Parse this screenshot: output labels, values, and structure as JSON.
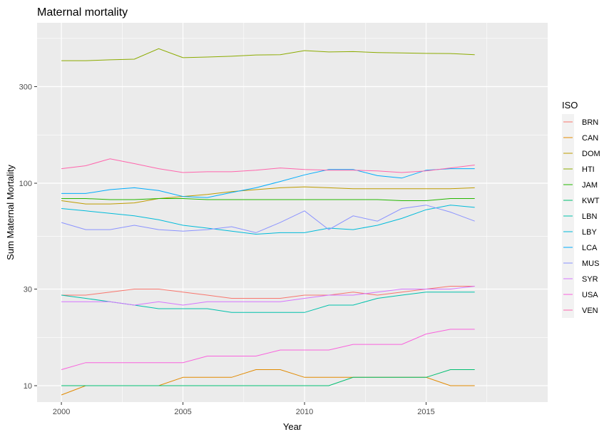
{
  "chart_data": {
    "type": "line",
    "title": "Maternal mortality",
    "xlabel": "Year",
    "ylabel": "Sum Maternal Mortality",
    "x_scale": "linear",
    "y_scale": "log10",
    "xlim": [
      1999.0,
      2020.0
    ],
    "ylim": [
      8.3,
      620
    ],
    "x_ticks": [
      2000,
      2005,
      2010,
      2015
    ],
    "y_ticks": [
      10,
      30,
      100,
      300
    ],
    "x": [
      2000,
      2001,
      2002,
      2003,
      2004,
      2005,
      2006,
      2007,
      2008,
      2009,
      2010,
      2011,
      2012,
      2013,
      2014,
      2015,
      2016,
      2017
    ],
    "grid": true,
    "legend": {
      "title": "ISO",
      "position": "right"
    },
    "series": [
      {
        "name": "BRN",
        "color": "#F8766D",
        "values": [
          28,
          28,
          29,
          30,
          30,
          29,
          28,
          27,
          27,
          27,
          28,
          28,
          29,
          28,
          29,
          30,
          31,
          31
        ]
      },
      {
        "name": "CAN",
        "color": "#E18A00",
        "values": [
          9,
          10,
          10,
          10,
          10,
          11,
          11,
          11,
          12,
          12,
          11,
          11,
          11,
          11,
          11,
          11,
          10,
          10
        ]
      },
      {
        "name": "DOM",
        "color": "#BE9C00",
        "values": [
          82,
          79,
          79,
          80,
          84,
          86,
          88,
          91,
          93,
          95,
          96,
          95,
          94,
          94,
          94,
          94,
          94,
          95
        ]
      },
      {
        "name": "HTI",
        "color": "#8CAB00",
        "values": [
          403,
          403,
          407,
          410,
          462,
          417,
          420,
          424,
          430,
          431,
          452,
          445,
          447,
          442,
          440,
          438,
          437,
          431
        ]
      },
      {
        "name": "JAM",
        "color": "#24B700",
        "values": [
          84,
          84,
          83,
          83,
          84,
          84,
          83,
          83,
          83,
          83,
          83,
          83,
          83,
          83,
          82,
          82,
          84,
          84
        ]
      },
      {
        "name": "KWT",
        "color": "#00BE70",
        "values": [
          10,
          10,
          10,
          10,
          10,
          10,
          10,
          10,
          10,
          10,
          10,
          10,
          11,
          11,
          11,
          11,
          12,
          12
        ]
      },
      {
        "name": "LBN",
        "color": "#00C1AB",
        "values": [
          28,
          27,
          26,
          25,
          24,
          24,
          24,
          23,
          23,
          23,
          23,
          25,
          25,
          27,
          28,
          29,
          29,
          29
        ]
      },
      {
        "name": "LBY",
        "color": "#00BBDA",
        "values": [
          75,
          73,
          71,
          69,
          66,
          62,
          60,
          58,
          56,
          57,
          57,
          60,
          59,
          62,
          67,
          74,
          78,
          76
        ]
      },
      {
        "name": "LCA",
        "color": "#00ACFC",
        "values": [
          89,
          89,
          93,
          95,
          92,
          86,
          85,
          90,
          95,
          102,
          110,
          117,
          117,
          109,
          106,
          116,
          118,
          118
        ]
      },
      {
        "name": "MUS",
        "color": "#8B93FF",
        "values": [
          64,
          59,
          59,
          62,
          59,
          58,
          59,
          61,
          57,
          64,
          73,
          59,
          69,
          65,
          75,
          78,
          72,
          65
        ]
      },
      {
        "name": "SYR",
        "color": "#D575FE",
        "values": [
          26,
          26,
          26,
          25,
          26,
          25,
          26,
          26,
          26,
          26,
          27,
          28,
          28,
          29,
          30,
          30,
          30,
          31
        ]
      },
      {
        "name": "USA",
        "color": "#F962DD",
        "values": [
          12,
          13,
          13,
          13,
          13,
          13,
          14,
          14,
          14,
          15,
          15,
          15,
          16,
          16,
          16,
          18,
          19,
          19
        ]
      },
      {
        "name": "VEN",
        "color": "#FF65AC",
        "values": [
          118,
          122,
          132,
          125,
          118,
          113,
          114,
          114,
          116,
          119,
          117,
          116,
          116,
          115,
          113,
          115,
          119,
          123
        ]
      }
    ]
  }
}
